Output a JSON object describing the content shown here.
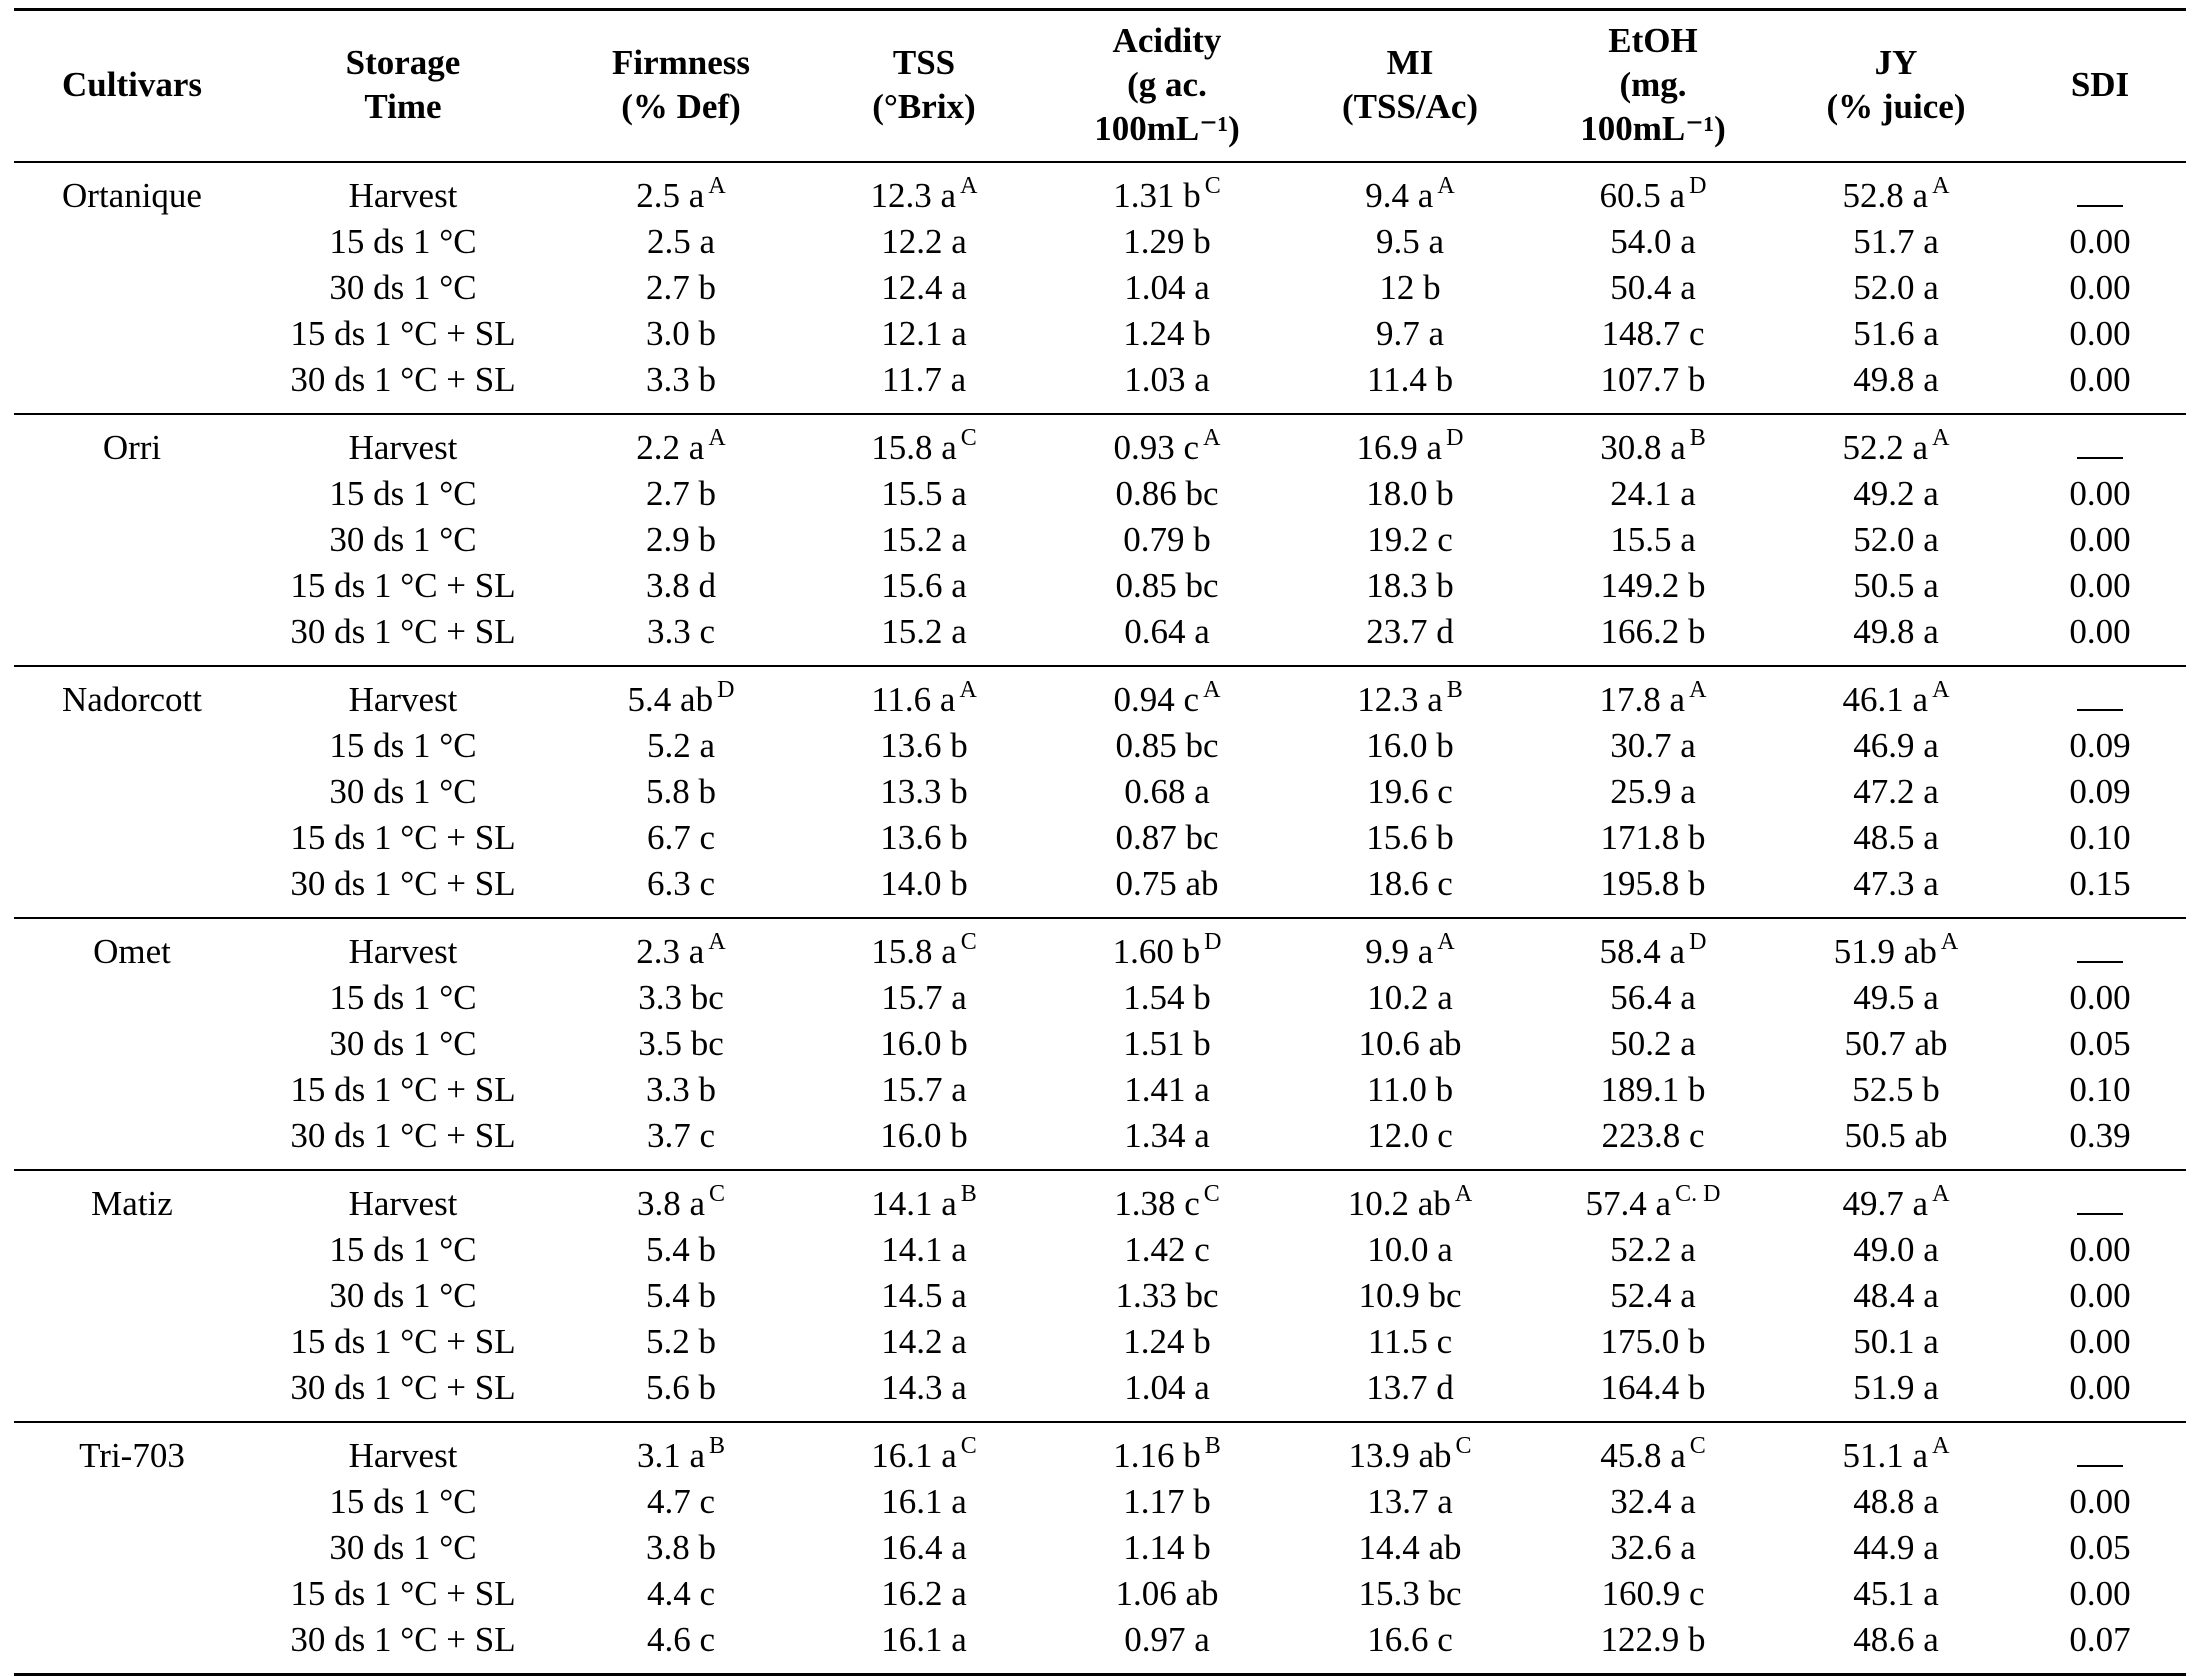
{
  "headers": [
    [
      "Cultivars"
    ],
    [
      "Storage",
      "Time"
    ],
    [
      "Firmness",
      "(% Def)"
    ],
    [
      "TSS",
      "(°Brix)"
    ],
    [
      "Acidity",
      "(g ac.",
      "100mL⁻¹)"
    ],
    [
      "MI",
      "(TSS/Ac)"
    ],
    [
      "EtOH",
      "(mg.",
      "100mL⁻¹)"
    ],
    [
      "JY",
      "(% juice)"
    ],
    [
      "SDI"
    ]
  ],
  "groups": [
    {
      "cultivar": "Ortanique",
      "rows": [
        {
          "storage": "Harvest",
          "cells": [
            {
              "v": "2.5 a",
              "s": "A"
            },
            {
              "v": "12.3 a",
              "s": "A"
            },
            {
              "v": "1.31 b",
              "s": "C"
            },
            {
              "v": "9.4 a",
              "s": "A"
            },
            {
              "v": "60.5 a",
              "s": "D"
            },
            {
              "v": "52.8 a",
              "s": "A"
            },
            {
              "v": "__"
            }
          ]
        },
        {
          "storage": "15 ds 1 °C",
          "cells": [
            {
              "v": "2.5 a"
            },
            {
              "v": "12.2 a"
            },
            {
              "v": "1.29 b"
            },
            {
              "v": "9.5 a"
            },
            {
              "v": "54.0 a"
            },
            {
              "v": "51.7 a"
            },
            {
              "v": "0.00"
            }
          ]
        },
        {
          "storage": "30 ds 1 °C",
          "cells": [
            {
              "v": "2.7 b"
            },
            {
              "v": "12.4 a"
            },
            {
              "v": "1.04 a"
            },
            {
              "v": "12 b"
            },
            {
              "v": "50.4 a"
            },
            {
              "v": "52.0 a"
            },
            {
              "v": "0.00"
            }
          ]
        },
        {
          "storage": "15 ds 1 °C + SL",
          "cells": [
            {
              "v": "3.0 b"
            },
            {
              "v": "12.1 a"
            },
            {
              "v": "1.24 b"
            },
            {
              "v": "9.7 a"
            },
            {
              "v": "148.7 c"
            },
            {
              "v": "51.6 a"
            },
            {
              "v": "0.00"
            }
          ]
        },
        {
          "storage": "30 ds 1 °C + SL",
          "cells": [
            {
              "v": "3.3 b"
            },
            {
              "v": "11.7 a"
            },
            {
              "v": "1.03 a"
            },
            {
              "v": "11.4 b"
            },
            {
              "v": "107.7 b"
            },
            {
              "v": "49.8 a"
            },
            {
              "v": "0.00"
            }
          ]
        }
      ]
    },
    {
      "cultivar": "Orri",
      "rows": [
        {
          "storage": "Harvest",
          "cells": [
            {
              "v": "2.2 a",
              "s": "A"
            },
            {
              "v": "15.8 a",
              "s": "C"
            },
            {
              "v": "0.93 c",
              "s": "A"
            },
            {
              "v": "16.9 a",
              "s": "D"
            },
            {
              "v": "30.8 a",
              "s": "B"
            },
            {
              "v": "52.2 a",
              "s": "A"
            },
            {
              "v": "__"
            }
          ]
        },
        {
          "storage": "15 ds 1 °C",
          "cells": [
            {
              "v": "2.7 b"
            },
            {
              "v": "15.5 a"
            },
            {
              "v": "0.86 bc"
            },
            {
              "v": "18.0 b"
            },
            {
              "v": "24.1 a"
            },
            {
              "v": "49.2 a"
            },
            {
              "v": "0.00"
            }
          ]
        },
        {
          "storage": "30 ds 1 °C",
          "cells": [
            {
              "v": "2.9 b"
            },
            {
              "v": "15.2 a"
            },
            {
              "v": "0.79 b"
            },
            {
              "v": "19.2 c"
            },
            {
              "v": "15.5 a"
            },
            {
              "v": "52.0 a"
            },
            {
              "v": "0.00"
            }
          ]
        },
        {
          "storage": "15 ds 1 °C + SL",
          "cells": [
            {
              "v": "3.8 d"
            },
            {
              "v": "15.6 a"
            },
            {
              "v": "0.85 bc"
            },
            {
              "v": "18.3 b"
            },
            {
              "v": "149.2 b"
            },
            {
              "v": "50.5 a"
            },
            {
              "v": "0.00"
            }
          ]
        },
        {
          "storage": "30 ds 1 °C + SL",
          "cells": [
            {
              "v": "3.3 c"
            },
            {
              "v": "15.2 a"
            },
            {
              "v": "0.64 a"
            },
            {
              "v": "23.7 d"
            },
            {
              "v": "166.2 b"
            },
            {
              "v": "49.8 a"
            },
            {
              "v": "0.00"
            }
          ]
        }
      ]
    },
    {
      "cultivar": "Nadorcott",
      "rows": [
        {
          "storage": "Harvest",
          "cells": [
            {
              "v": "5.4 ab",
              "s": "D"
            },
            {
              "v": "11.6 a",
              "s": "A"
            },
            {
              "v": "0.94 c",
              "s": "A"
            },
            {
              "v": "12.3 a",
              "s": "B"
            },
            {
              "v": "17.8 a",
              "s": "A"
            },
            {
              "v": "46.1 a",
              "s": "A"
            },
            {
              "v": "__"
            }
          ]
        },
        {
          "storage": "15 ds 1 °C",
          "cells": [
            {
              "v": "5.2 a"
            },
            {
              "v": "13.6 b"
            },
            {
              "v": "0.85 bc"
            },
            {
              "v": "16.0 b"
            },
            {
              "v": "30.7 a"
            },
            {
              "v": "46.9 a"
            },
            {
              "v": "0.09"
            }
          ]
        },
        {
          "storage": "30 ds 1 °C",
          "cells": [
            {
              "v": "5.8 b"
            },
            {
              "v": "13.3 b"
            },
            {
              "v": "0.68 a"
            },
            {
              "v": "19.6 c"
            },
            {
              "v": "25.9 a"
            },
            {
              "v": "47.2 a"
            },
            {
              "v": "0.09"
            }
          ]
        },
        {
          "storage": "15 ds 1 °C + SL",
          "cells": [
            {
              "v": "6.7 c"
            },
            {
              "v": "13.6 b"
            },
            {
              "v": "0.87 bc"
            },
            {
              "v": "15.6 b"
            },
            {
              "v": "171.8 b"
            },
            {
              "v": "48.5 a"
            },
            {
              "v": "0.10"
            }
          ]
        },
        {
          "storage": "30 ds 1 °C + SL",
          "cells": [
            {
              "v": "6.3 c"
            },
            {
              "v": "14.0 b"
            },
            {
              "v": "0.75 ab"
            },
            {
              "v": "18.6 c"
            },
            {
              "v": "195.8 b"
            },
            {
              "v": "47.3 a"
            },
            {
              "v": "0.15"
            }
          ]
        }
      ]
    },
    {
      "cultivar": "Omet",
      "rows": [
        {
          "storage": "Harvest",
          "cells": [
            {
              "v": "2.3 a",
              "s": "A"
            },
            {
              "v": "15.8 a",
              "s": "C"
            },
            {
              "v": "1.60 b",
              "s": "D"
            },
            {
              "v": "9.9 a",
              "s": "A"
            },
            {
              "v": "58.4 a",
              "s": "D"
            },
            {
              "v": "51.9 ab",
              "s": "A"
            },
            {
              "v": "__"
            }
          ]
        },
        {
          "storage": "15 ds 1 °C",
          "cells": [
            {
              "v": "3.3 bc"
            },
            {
              "v": "15.7 a"
            },
            {
              "v": "1.54 b"
            },
            {
              "v": "10.2 a"
            },
            {
              "v": "56.4 a"
            },
            {
              "v": "49.5 a"
            },
            {
              "v": "0.00"
            }
          ]
        },
        {
          "storage": "30 ds 1 °C",
          "cells": [
            {
              "v": "3.5 bc"
            },
            {
              "v": "16.0 b"
            },
            {
              "v": "1.51 b"
            },
            {
              "v": "10.6 ab"
            },
            {
              "v": "50.2 a"
            },
            {
              "v": "50.7 ab"
            },
            {
              "v": "0.05"
            }
          ]
        },
        {
          "storage": "15 ds 1 °C + SL",
          "cells": [
            {
              "v": "3.3 b"
            },
            {
              "v": "15.7 a"
            },
            {
              "v": "1.41 a"
            },
            {
              "v": "11.0 b"
            },
            {
              "v": "189.1 b"
            },
            {
              "v": "52.5 b"
            },
            {
              "v": "0.10"
            }
          ]
        },
        {
          "storage": "30 ds 1 °C + SL",
          "cells": [
            {
              "v": "3.7 c"
            },
            {
              "v": "16.0 b"
            },
            {
              "v": "1.34 a"
            },
            {
              "v": "12.0 c"
            },
            {
              "v": "223.8 c"
            },
            {
              "v": "50.5 ab"
            },
            {
              "v": "0.39"
            }
          ]
        }
      ]
    },
    {
      "cultivar": "Matiz",
      "rows": [
        {
          "storage": "Harvest",
          "cells": [
            {
              "v": "3.8 a",
              "s": "C"
            },
            {
              "v": "14.1 a",
              "s": "B"
            },
            {
              "v": "1.38 c",
              "s": "C"
            },
            {
              "v": "10.2 ab",
              "s": "A"
            },
            {
              "v": "57.4 a",
              "s": "C. D"
            },
            {
              "v": "49.7 a",
              "s": "A"
            },
            {
              "v": "__"
            }
          ]
        },
        {
          "storage": "15 ds 1 °C",
          "cells": [
            {
              "v": "5.4 b"
            },
            {
              "v": "14.1 a"
            },
            {
              "v": "1.42 c"
            },
            {
              "v": "10.0 a"
            },
            {
              "v": "52.2 a"
            },
            {
              "v": "49.0 a"
            },
            {
              "v": "0.00"
            }
          ]
        },
        {
          "storage": "30 ds 1 °C",
          "cells": [
            {
              "v": "5.4 b"
            },
            {
              "v": "14.5 a"
            },
            {
              "v": "1.33 bc"
            },
            {
              "v": "10.9 bc"
            },
            {
              "v": "52.4 a"
            },
            {
              "v": "48.4 a"
            },
            {
              "v": "0.00"
            }
          ]
        },
        {
          "storage": "15 ds 1 °C + SL",
          "cells": [
            {
              "v": "5.2 b"
            },
            {
              "v": "14.2 a"
            },
            {
              "v": "1.24 b"
            },
            {
              "v": "11.5 c"
            },
            {
              "v": "175.0 b"
            },
            {
              "v": "50.1 a"
            },
            {
              "v": "0.00"
            }
          ]
        },
        {
          "storage": "30 ds 1 °C + SL",
          "cells": [
            {
              "v": "5.6 b"
            },
            {
              "v": "14.3 a"
            },
            {
              "v": "1.04 a"
            },
            {
              "v": "13.7 d"
            },
            {
              "v": "164.4 b"
            },
            {
              "v": "51.9 a"
            },
            {
              "v": "0.00"
            }
          ]
        }
      ]
    },
    {
      "cultivar": "Tri-703",
      "rows": [
        {
          "storage": "Harvest",
          "cells": [
            {
              "v": "3.1 a",
              "s": "B"
            },
            {
              "v": "16.1 a",
              "s": "C"
            },
            {
              "v": "1.16 b",
              "s": "B"
            },
            {
              "v": "13.9 ab",
              "s": "C"
            },
            {
              "v": "45.8 a",
              "s": "C"
            },
            {
              "v": "51.1 a",
              "s": "A"
            },
            {
              "v": "__"
            }
          ]
        },
        {
          "storage": "15 ds 1 °C",
          "cells": [
            {
              "v": "4.7 c"
            },
            {
              "v": "16.1 a"
            },
            {
              "v": "1.17 b"
            },
            {
              "v": "13.7 a"
            },
            {
              "v": "32.4 a"
            },
            {
              "v": "48.8 a"
            },
            {
              "v": "0.00"
            }
          ]
        },
        {
          "storage": "30 ds 1 °C",
          "cells": [
            {
              "v": "3.8 b"
            },
            {
              "v": "16.4 a"
            },
            {
              "v": "1.14 b"
            },
            {
              "v": "14.4 ab"
            },
            {
              "v": "32.6 a"
            },
            {
              "v": "44.9 a"
            },
            {
              "v": "0.05"
            }
          ]
        },
        {
          "storage": "15 ds 1 °C + SL",
          "cells": [
            {
              "v": "4.4 c"
            },
            {
              "v": "16.2 a"
            },
            {
              "v": "1.06 ab"
            },
            {
              "v": "15.3 bc"
            },
            {
              "v": "160.9 c"
            },
            {
              "v": "45.1 a"
            },
            {
              "v": "0.00"
            }
          ]
        },
        {
          "storage": "30 ds 1 °C + SL",
          "cells": [
            {
              "v": "4.6 c"
            },
            {
              "v": "16.1 a"
            },
            {
              "v": "0.97 a"
            },
            {
              "v": "16.6 c"
            },
            {
              "v": "122.9 b"
            },
            {
              "v": "48.6 a"
            },
            {
              "v": "0.07"
            }
          ]
        }
      ]
    }
  ]
}
